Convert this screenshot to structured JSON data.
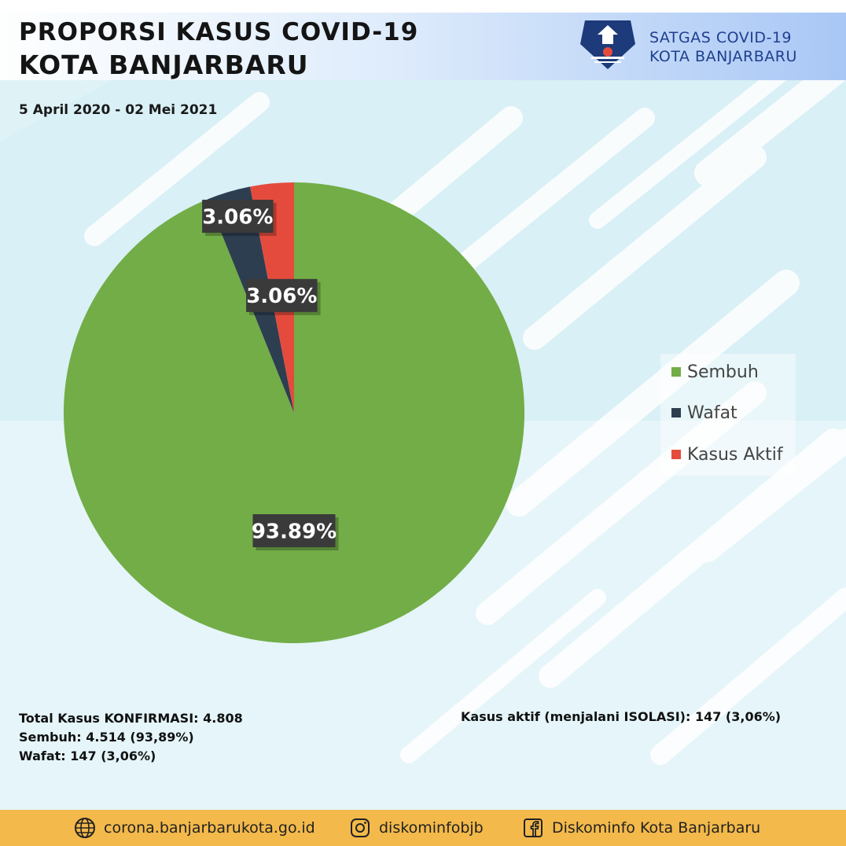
{
  "header": {
    "title_line1": "PROPORSI KASUS COVID-19",
    "title_line2": "KOTA BANJARBARU",
    "org_line1": "SATGAS COVID-19",
    "org_line2": "KOTA BANJARBARU",
    "period": "5 April 2020 - 02 Mei 2021"
  },
  "chart_data": {
    "type": "pie",
    "categories": [
      "Sembuh",
      "Wafat",
      "Kasus Aktif"
    ],
    "values": [
      93.89,
      3.06,
      3.06
    ],
    "labels": [
      "93.89%",
      "3.06%",
      "3.06%"
    ],
    "colors": [
      "#72ad47",
      "#2d3e50",
      "#e54b3c"
    ],
    "legend_position": "right"
  },
  "legend": {
    "items": [
      {
        "label": "Sembuh",
        "color": "#72ad47"
      },
      {
        "label": "Wafat",
        "color": "#2d3e50"
      },
      {
        "label": "Kasus Aktif",
        "color": "#e54b3c"
      }
    ]
  },
  "stats": {
    "total": "Total Kasus KONFIRMASI: 4.808",
    "sembuh": "Sembuh: 4.514 (93,89%)",
    "wafat": "Wafat: 147 (3,06%)",
    "aktif": "Kasus aktif (menjalani ISOLASI): 147 (3,06%)"
  },
  "footer": {
    "website": "corona.banjarbarukota.go.id",
    "instagram": "diskominfobjb",
    "facebook": "Diskominfo Kota Banjarbaru",
    "website_icon": "globe-icon",
    "instagram_icon": "instagram-icon",
    "facebook_icon": "facebook-icon"
  }
}
